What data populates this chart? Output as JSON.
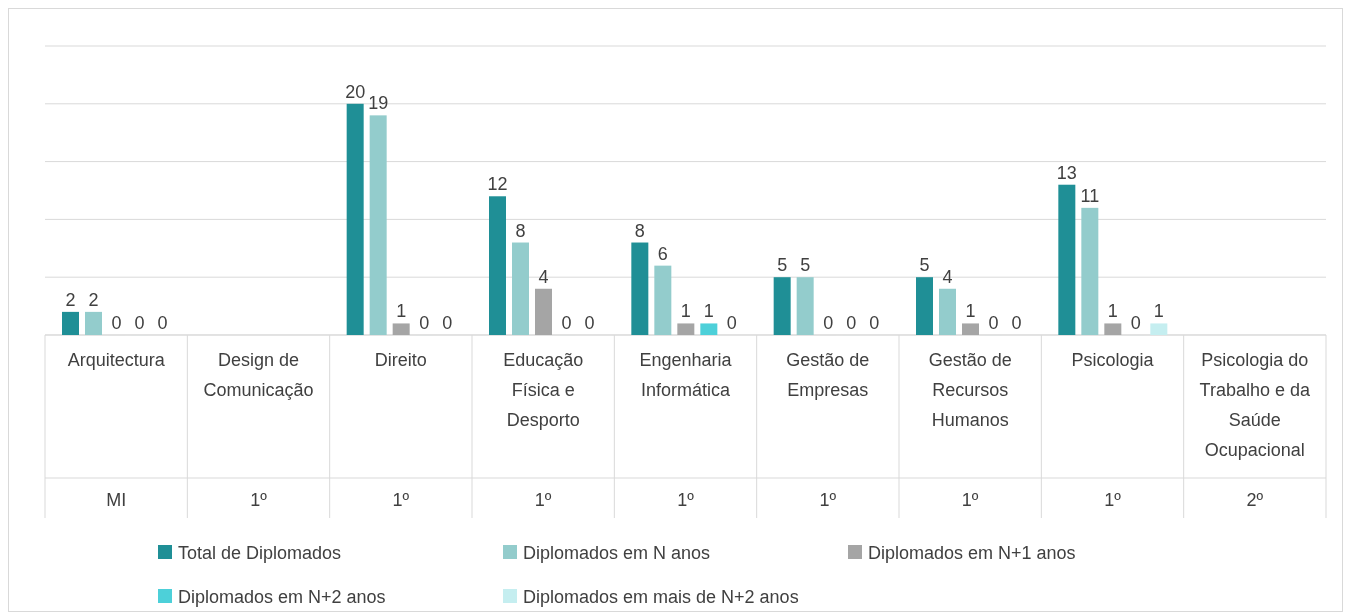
{
  "chart_data": {
    "type": "bar",
    "categories": [
      "Arquitectura",
      "Design de Comunicação",
      "Direito",
      "Educação Física e Desporto",
      "Engenharia Informática",
      "Gestão de Empresas",
      "Gestão de Recursos Humanos",
      "Psicologia",
      "Psicologia do Trabalho e da Saúde Ocupacional"
    ],
    "series": [
      {
        "name": "Total de Diplomados",
        "color": "#1f8f96",
        "values": [
          2,
          null,
          20,
          12,
          8,
          5,
          5,
          13,
          null
        ]
      },
      {
        "name": "Diplomados em N anos",
        "color": "#93cccc",
        "values": [
          2,
          null,
          19,
          8,
          6,
          5,
          4,
          11,
          null
        ]
      },
      {
        "name": "Diplomados em N+1 anos",
        "color": "#a5a5a5",
        "values": [
          0,
          null,
          1,
          4,
          1,
          0,
          1,
          1,
          null
        ]
      },
      {
        "name": "Diplomados em N+2 anos",
        "color": "#4dd0d9",
        "values": [
          0,
          null,
          0,
          0,
          1,
          0,
          0,
          0,
          null
        ]
      },
      {
        "name": "Diplomados em mais de N+2 anos",
        "color": "#c5eef0",
        "values": [
          0,
          null,
          0,
          0,
          0,
          0,
          0,
          1,
          null
        ]
      }
    ],
    "ylim": [
      0,
      25
    ],
    "yticks": [
      {
        "value": 0,
        "label": null
      },
      {
        "value": 5,
        "label": null
      },
      {
        "value": 10,
        "label": null
      },
      {
        "value": 15,
        "label": null
      },
      {
        "value": 20,
        "label": null
      },
      {
        "value": 25,
        "label": null
      }
    ],
    "tick_labels": "x",
    "grid": "y",
    "data_labels": true,
    "legend": "bottom",
    "annotations": [
      "MI",
      "1º",
      "1º",
      "1º",
      "1º",
      "1º",
      "1º",
      "1º",
      "2º"
    ]
  }
}
